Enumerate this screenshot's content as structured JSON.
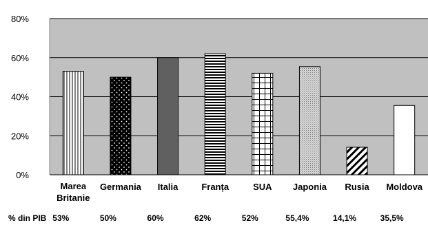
{
  "chart_data": {
    "type": "bar",
    "categories": [
      [
        "Marea",
        "Britanie"
      ],
      [
        "Germania"
      ],
      [
        "Italia"
      ],
      [
        "Franța"
      ],
      [
        "SUA"
      ],
      [
        "Japonia"
      ],
      [
        "Rusia"
      ],
      [
        "Moldova"
      ]
    ],
    "values": [
      53,
      50,
      60,
      62,
      52,
      55.4,
      14.1,
      35.5
    ],
    "ylim": [
      0,
      80
    ],
    "yticks": [
      0,
      20,
      40,
      60,
      80
    ],
    "ytick_labels": [
      "0%",
      "20%",
      "40%",
      "60%",
      "80%"
    ],
    "grid": true,
    "row_label": "% din PIB",
    "value_labels": [
      "53%",
      "50%",
      "60%",
      "62%",
      "52%",
      "55,4%",
      "14,1%",
      "35,5%"
    ],
    "patterns": [
      "vertical-lines",
      "dots-on-black",
      "solid-gray",
      "horizontal-lines",
      "grid",
      "fine-dots",
      "diagonal-lines",
      "solid-white"
    ],
    "colors": {
      "plot_background": "#c0c0c0",
      "dark_bar": "#606060",
      "bar_outline": "#000000"
    }
  }
}
